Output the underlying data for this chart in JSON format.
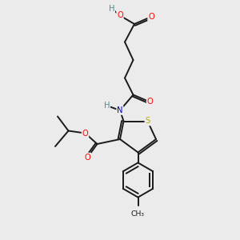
{
  "bg_color": "#ebebeb",
  "bond_color": "#1a1a1a",
  "atom_colors": {
    "O": "#ff0000",
    "N": "#0000cc",
    "S": "#bbaa00",
    "C": "#1a1a1a",
    "H": "#4a9090"
  },
  "figsize": [
    3.0,
    3.0
  ],
  "dpi": 100
}
